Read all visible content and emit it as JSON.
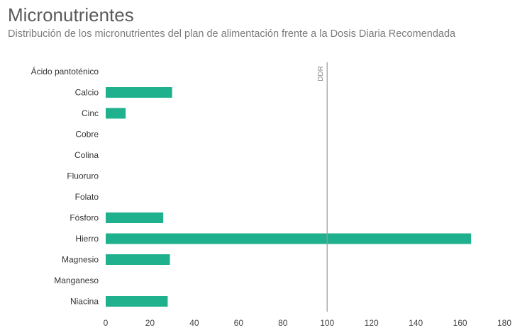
{
  "chart_data": {
    "type": "bar",
    "orientation": "horizontal",
    "title": "Micronutrientes",
    "subtitle": "Distribución de los micronutrientes del plan de alimentación frente a la Dosis Diaria Recomendada",
    "categories": [
      "Ácido pantoténico",
      "Calcio",
      "Cinc",
      "Cobre",
      "Colina",
      "Fluoruro",
      "Folato",
      "Fósforo",
      "Hierro",
      "Magnesio",
      "Manganeso",
      "Niacina"
    ],
    "values": [
      0,
      30,
      9,
      0,
      0,
      0,
      0,
      26,
      165,
      29,
      0,
      28
    ],
    "xlim": [
      0,
      180
    ],
    "xticks": [
      0,
      20,
      40,
      60,
      80,
      100,
      120,
      140,
      160,
      180
    ],
    "reference_line": {
      "value": 100,
      "label": "DDR"
    },
    "bar_color": "#1fb08e",
    "grid": false
  }
}
